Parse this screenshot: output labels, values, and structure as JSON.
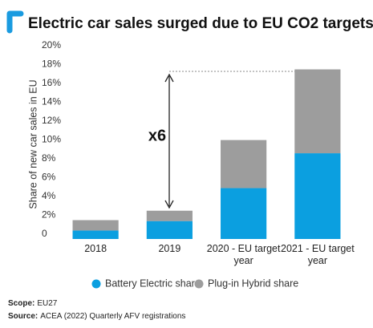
{
  "chart_data": {
    "type": "stacked-bar",
    "title": "Electric car sales surged due to EU CO2 targets",
    "y_label": "Share of new car sales in EU",
    "categories": [
      "2018",
      "2019",
      "2020 - EU target year",
      "2021 - EU target year"
    ],
    "series": [
      {
        "name": "Battery Electric share",
        "color": "#0b9fe0",
        "values": [
          0.9,
          1.9,
          5.4,
          9.1
        ]
      },
      {
        "name": "Plug-in Hybrid share",
        "color": "#9d9d9d",
        "values": [
          1.1,
          1.1,
          5.1,
          8.9
        ]
      }
    ],
    "ylim": [
      0,
      20
    ],
    "yticks": [
      0,
      {
        "value": 2,
        "label": "2%"
      },
      {
        "value": 4,
        "label": "4%"
      },
      {
        "value": 6,
        "label": "6%"
      },
      {
        "value": 8,
        "label": "8%"
      },
      {
        "value": 10,
        "label": "10%"
      },
      {
        "value": 12,
        "label": "12%"
      },
      {
        "value": 14,
        "label": "14%"
      },
      {
        "value": 16,
        "label": "16%"
      },
      {
        "value": 18,
        "label": "18%"
      },
      {
        "value": 20,
        "label": "20%"
      }
    ],
    "grid": false,
    "annotation": "x6",
    "footnotes": [
      {
        "label": "Scope:",
        "text": "EU27"
      },
      {
        "label": "Source:",
        "text": "ACEA (2022) Quarterly AFV registrations"
      }
    ]
  }
}
